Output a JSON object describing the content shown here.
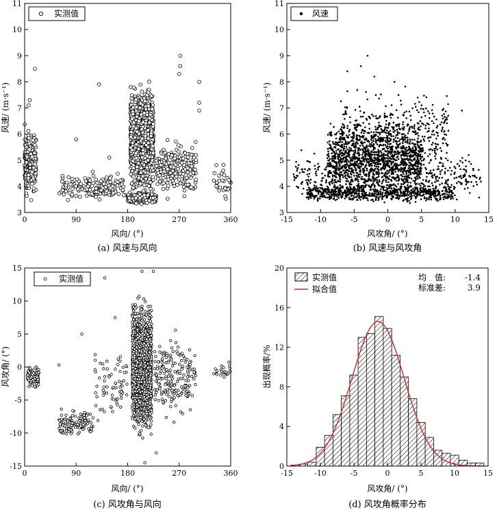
{
  "chart_data": [
    {
      "id": "a",
      "type": "scatter",
      "caption": "(a) 风速与风向",
      "xlabel": "风向/ (°)",
      "ylabel": "风速/ (m·s⁻¹)",
      "xlim": [
        0,
        360
      ],
      "ylim": [
        3,
        11
      ],
      "xticks": [
        "0",
        "90",
        "180",
        "270",
        "360"
      ],
      "yticks": [
        "3",
        "4",
        "5",
        "6",
        "7",
        "8",
        "9",
        "10",
        "11"
      ],
      "legend": {
        "label": "实测值",
        "position": "top-left",
        "marker": "open-circle"
      },
      "series": [
        {
          "name": "实测值",
          "clusters": [
            {
              "x": [
                0,
                20
              ],
              "y": [
                3.3,
                6.5
              ],
              "n": 220
            },
            {
              "x": [
                185,
                225
              ],
              "y": [
                3.3,
                8.2
              ],
              "n": 1300
            },
            {
              "x": [
                180,
                230
              ],
              "y": [
                3.3,
                3.8
              ],
              "n": 300
            },
            {
              "x": [
                60,
                175
              ],
              "y": [
                3.3,
                4.6
              ],
              "n": 170
            },
            {
              "x": [
                230,
                300
              ],
              "y": [
                3.4,
                6.0
              ],
              "n": 210
            },
            {
              "x": [
                330,
                360
              ],
              "y": [
                3.3,
                5.0
              ],
              "n": 30
            }
          ],
          "points": [
            [
              9,
              7.3
            ],
            [
              7,
              7.1
            ],
            [
              18,
              8.5
            ],
            [
              130,
              7.9
            ],
            [
              272,
              9.0
            ],
            [
              272,
              8.6
            ],
            [
              270,
              8.3
            ],
            [
              305,
              8.0
            ],
            [
              305,
              7.2
            ],
            [
              305,
              6.9
            ],
            [
              90,
              5.8
            ],
            [
              148,
              5.1
            ]
          ]
        }
      ]
    },
    {
      "id": "b",
      "type": "scatter",
      "caption": "(b) 风速与风攻角",
      "xlabel": "风攻角/ (°)",
      "ylabel": "风速/ (m·s⁻¹)",
      "xlim": [
        -15,
        15
      ],
      "ylim": [
        3,
        11
      ],
      "xticks": [
        "-15",
        "-10",
        "-5",
        "0",
        "5",
        "10",
        "15"
      ],
      "yticks": [
        "3",
        "4",
        "5",
        "6",
        "7",
        "8",
        "9",
        "10",
        "11"
      ],
      "legend": {
        "label": "风速",
        "position": "top-left",
        "marker": "filled-dot"
      },
      "series": [
        {
          "name": "风速",
          "clusters": [
            {
              "x": [
                -12,
                10
              ],
              "y": [
                3.3,
                4.2
              ],
              "n": 700
            },
            {
              "x": [
                -9,
                5
              ],
              "y": [
                3.3,
                6.8
              ],
              "n": 1400
            },
            {
              "x": [
                -7,
                9
              ],
              "y": [
                4.0,
                8.0
              ],
              "n": 450
            },
            {
              "x": [
                -14,
                14
              ],
              "y": [
                3.3,
                5.5
              ],
              "n": 400
            }
          ],
          "points": [
            [
              -3,
              9.0
            ],
            [
              -4,
              8.6
            ],
            [
              -6,
              8.4
            ],
            [
              -2,
              8.2
            ],
            [
              1,
              8.0
            ],
            [
              5,
              7.1
            ],
            [
              11,
              6.9
            ],
            [
              12,
              5.2
            ]
          ]
        }
      ]
    },
    {
      "id": "c",
      "type": "scatter",
      "caption": "(c) 风攻角与风向",
      "xlabel": "风向/ (°)",
      "ylabel": "风攻角/ (°)",
      "xlim": [
        0,
        360
      ],
      "ylim": [
        -15,
        15
      ],
      "xticks": [
        "0",
        "90",
        "180",
        "270",
        "360"
      ],
      "yticks": [
        "-15",
        "-10",
        "-5",
        "0",
        "5",
        "10",
        "15"
      ],
      "legend": {
        "label": "实测值",
        "position": "top-left",
        "marker": "open-circle"
      },
      "series": [
        {
          "name": "实测值",
          "clusters": [
            {
              "x": [
                188,
                222
              ],
              "y": [
                -12,
                12
              ],
              "n": 1500
            },
            {
              "x": [
                5,
                25
              ],
              "y": [
                -3.5,
                0.5
              ],
              "n": 110
            },
            {
              "x": [
                60,
                120
              ],
              "y": [
                -11,
                -6
              ],
              "n": 130
            },
            {
              "x": [
                225,
                300
              ],
              "y": [
                -9,
                6
              ],
              "n": 200
            },
            {
              "x": [
                120,
                180
              ],
              "y": [
                -10,
                4
              ],
              "n": 70
            },
            {
              "x": [
                330,
                360
              ],
              "y": [
                -2,
                1
              ],
              "n": 25
            }
          ],
          "points": [
            [
              140,
              13.5
            ],
            [
              205,
              14.5
            ],
            [
              225,
              14.5
            ],
            [
              100,
              5.0
            ],
            [
              60,
              0.3
            ],
            [
              158,
              7.5
            ],
            [
              210,
              -14.5
            ],
            [
              230,
              -13.0
            ]
          ]
        }
      ]
    },
    {
      "id": "d",
      "type": "bar",
      "caption": "(d) 风攻角概率分布",
      "xlabel": "风攻角/ (°)",
      "ylabel": "出现概率/%",
      "xlim": [
        -15,
        15
      ],
      "ylim": [
        0,
        20
      ],
      "xticks": [
        "-15",
        "-10",
        "-5",
        "0",
        "5",
        "10",
        "15"
      ],
      "yticks": [
        "0",
        "4",
        "8",
        "12",
        "16",
        "20"
      ],
      "bin_width": 1.25,
      "bin_centers": [
        -13.75,
        -12.5,
        -11.25,
        -10,
        -8.75,
        -7.5,
        -6.25,
        -5,
        -3.75,
        -2.5,
        -1.25,
        0,
        1.25,
        2.5,
        3.75,
        5,
        6.25,
        7.5,
        8.75,
        10,
        11.25,
        12.5,
        13.75
      ],
      "values": [
        0.1,
        0.2,
        0.4,
        1.9,
        3.1,
        5.2,
        7.1,
        9.2,
        13.0,
        13.4,
        15.1,
        13.9,
        11.2,
        9.0,
        6.8,
        4.4,
        2.9,
        1.6,
        1.3,
        1.1,
        0.6,
        0.3,
        0.3
      ],
      "fit": {
        "name": "拟合值",
        "mean": -1.4,
        "std": 3.9,
        "peak": 14.6,
        "color": "#d62728"
      },
      "legend": {
        "position": "top-left",
        "items": [
          "实测值",
          "拟合值"
        ]
      },
      "stats": [
        {
          "label": "均　值:",
          "value": "-1.4"
        },
        {
          "label": "标准差:",
          "value": "3.9"
        }
      ]
    }
  ]
}
